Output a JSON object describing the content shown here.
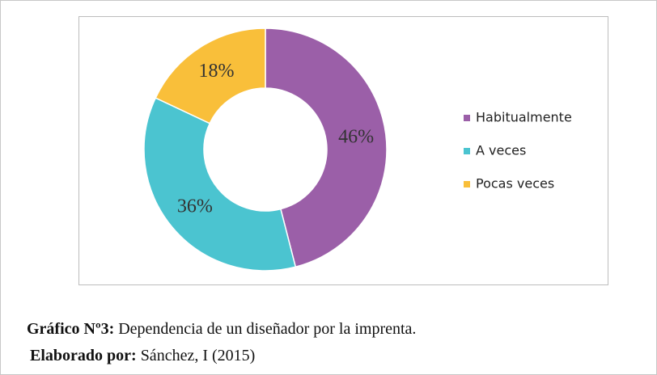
{
  "chart_data": {
    "type": "donut",
    "categories": [
      "Habitualmente",
      "A veces",
      "Pocas veces"
    ],
    "values": [
      46,
      36,
      18
    ],
    "value_labels": [
      "46%",
      "36%",
      "18%"
    ],
    "colors": [
      "#9b5fa8",
      "#4bc4d0",
      "#f9bf3a"
    ]
  },
  "caption": {
    "label": "Gráfico Nº3:",
    "text": "Dependencia de un diseñador por la imprenta."
  },
  "credit": {
    "label": "Elaborado por:",
    "text": "Sánchez, I (2015)"
  }
}
